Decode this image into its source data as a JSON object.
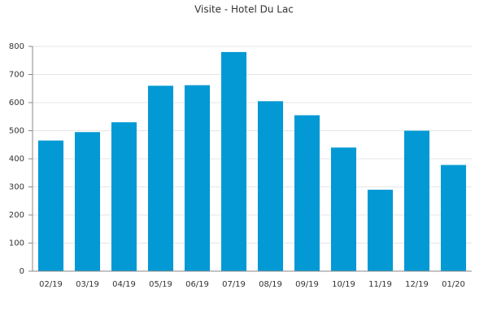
{
  "chart_data": {
    "type": "bar",
    "title": "Visite - Hotel Du Lac",
    "categories": [
      "02/19",
      "03/19",
      "04/19",
      "05/19",
      "06/19",
      "07/19",
      "08/19",
      "09/19",
      "10/19",
      "11/19",
      "12/19",
      "01/20"
    ],
    "values": [
      465,
      495,
      530,
      660,
      662,
      780,
      605,
      555,
      440,
      290,
      500,
      378
    ],
    "color": "#0399d4",
    "ylim": [
      0,
      800
    ],
    "yticks": [
      0,
      100,
      200,
      300,
      400,
      500,
      600,
      700,
      800
    ],
    "grid": true
  }
}
